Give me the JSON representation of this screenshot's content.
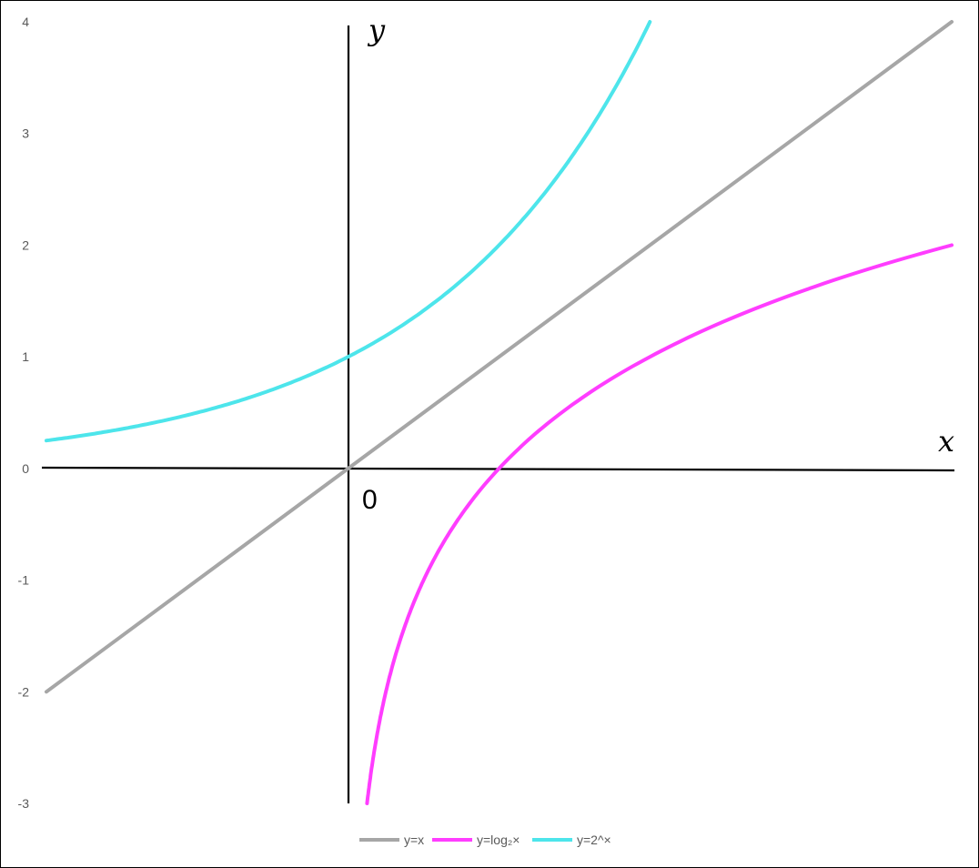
{
  "chart_data": {
    "type": "line",
    "xlabel": "x",
    "ylabel": "y",
    "origin_label": "0",
    "xlim": [
      -2,
      4
    ],
    "ylim": [
      -3,
      4
    ],
    "yticks": [
      "4",
      "3",
      "2",
      "1",
      "0",
      "-1",
      "-2",
      "-3"
    ],
    "grid": false,
    "legend": "bottom",
    "series": [
      {
        "name": "y=x",
        "color": "#a6a6a6",
        "x": [
          -2,
          4
        ],
        "y": [
          -2,
          4
        ]
      },
      {
        "name": "y=log₂×",
        "color": "#ff3dff",
        "x": [
          0.125,
          0.2,
          0.3,
          0.4,
          0.5,
          0.6,
          0.7,
          0.8,
          1,
          1.25,
          1.5,
          2,
          2.5,
          3,
          3.5,
          4
        ],
        "y": [
          -3,
          -2.32,
          -1.74,
          -1.32,
          -1,
          -0.74,
          -0.51,
          -0.32,
          0,
          0.32,
          0.58,
          1,
          1.32,
          1.58,
          1.81,
          2
        ]
      },
      {
        "name": "y=2^×",
        "color": "#4de5eb",
        "x": [
          -2,
          -1.5,
          -1,
          -0.5,
          0,
          0.25,
          0.5,
          0.75,
          1,
          1.25,
          1.5,
          1.75,
          2
        ],
        "y": [
          0.25,
          0.35,
          0.5,
          0.71,
          1,
          1.19,
          1.41,
          1.68,
          2,
          2.38,
          2.83,
          3.36,
          4
        ]
      }
    ]
  }
}
